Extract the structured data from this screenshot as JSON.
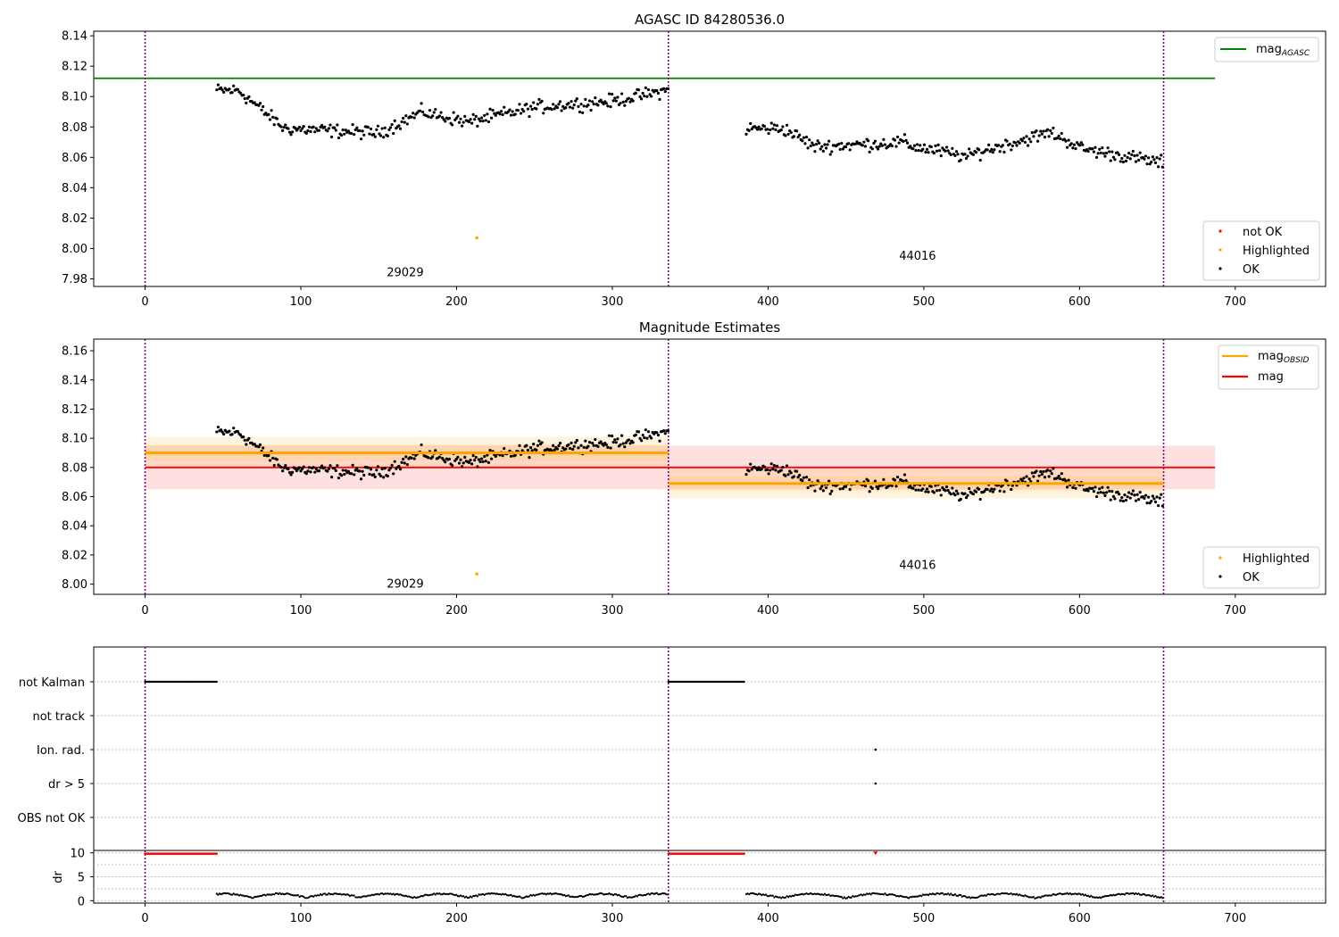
{
  "chart_data": [
    {
      "type": "scatter",
      "title": "AGASC ID 84280536.0",
      "xlim": [
        -33,
        758
      ],
      "ylim": [
        7.975,
        8.143
      ],
      "x_ticks": [
        0,
        100,
        200,
        300,
        400,
        500,
        600,
        700
      ],
      "y_ticks": [
        7.98,
        8.0,
        8.02,
        8.04,
        8.06,
        8.08,
        8.1,
        8.12,
        8.14
      ],
      "obs_boundaries": [
        0,
        336,
        654
      ],
      "obs_labels": [
        {
          "text": "29029",
          "x": 167,
          "y": 7.984
        },
        {
          "text": "44016",
          "x": 496,
          "y": 7.995
        }
      ],
      "agasc_mag": 8.112,
      "agasc_x_range": [
        -33,
        687
      ],
      "highlighted_points": [
        [
          213,
          8.007
        ]
      ],
      "legend_lines": [
        {
          "name": "mag",
          "sub": "AGASC",
          "color": "#008000"
        }
      ],
      "legend_points": [
        {
          "name": "not OK",
          "color": "#ff0000"
        },
        {
          "name": "Highlighted",
          "color": "#ffa500"
        },
        {
          "name": "OK",
          "color": "#000000"
        }
      ]
    },
    {
      "type": "scatter",
      "title": "Magnitude Estimates",
      "xlim": [
        -33,
        758
      ],
      "ylim": [
        7.993,
        8.168
      ],
      "x_ticks": [
        0,
        100,
        200,
        300,
        400,
        500,
        600,
        700
      ],
      "y_ticks": [
        8.0,
        8.02,
        8.04,
        8.06,
        8.08,
        8.1,
        8.12,
        8.14,
        8.16
      ],
      "obs_labels": [
        {
          "text": "29029",
          "x": 167,
          "y": 8.0
        },
        {
          "text": "44016",
          "x": 496,
          "y": 8.013
        }
      ],
      "mag": {
        "value": 8.08,
        "band": [
          8.065,
          8.095
        ],
        "x_range": [
          0,
          687
        ]
      },
      "mag_obsid": [
        {
          "x_range": [
            0,
            336
          ],
          "value": 8.09,
          "band": [
            8.08,
            8.101
          ]
        },
        {
          "x_range": [
            336,
            654
          ],
          "value": 8.069,
          "band": [
            8.059,
            8.079
          ]
        }
      ],
      "highlighted_points": [
        [
          213,
          8.007
        ]
      ],
      "legend_lines": [
        {
          "name": "mag",
          "sub": "OBSID",
          "color": "#ffa500"
        },
        {
          "name": "mag",
          "sub": "",
          "color": "#ff0000"
        }
      ],
      "legend_points": [
        {
          "name": "Highlighted",
          "color": "#ffa500"
        },
        {
          "name": "OK",
          "color": "#000000"
        }
      ]
    },
    {
      "type": "scatter",
      "xlim": [
        -33,
        758
      ],
      "flag_rows": [
        "not Kalman",
        "not track",
        "Ion. rad.",
        "dr > 5",
        "OBS not OK"
      ],
      "flag_segments": [
        {
          "row": "not Kalman",
          "x_range": [
            0,
            46
          ]
        },
        {
          "row": "not Kalman",
          "x_range": [
            336,
            385
          ]
        }
      ],
      "flag_points": [
        {
          "row": "Ion. rad.",
          "x": 469
        },
        {
          "row": "dr > 5",
          "x": 469
        }
      ],
      "dr_ylabel": "dr",
      "dr_ylim": [
        -0.5,
        10.5
      ],
      "dr_ticks": [
        0,
        5,
        10
      ],
      "dr_x_ticks": [
        0,
        100,
        200,
        300,
        400,
        500,
        600,
        700
      ],
      "dr_capped_segments": [
        [
          0,
          46
        ],
        [
          336,
          385
        ]
      ],
      "dr_capped_points": [
        469
      ],
      "dr_capped_value": 10,
      "obs_boundaries": [
        0,
        336,
        654
      ],
      "colors": {
        "ok": "#000000",
        "not_ok": "#ff0000",
        "boundary": "#800080"
      }
    }
  ]
}
